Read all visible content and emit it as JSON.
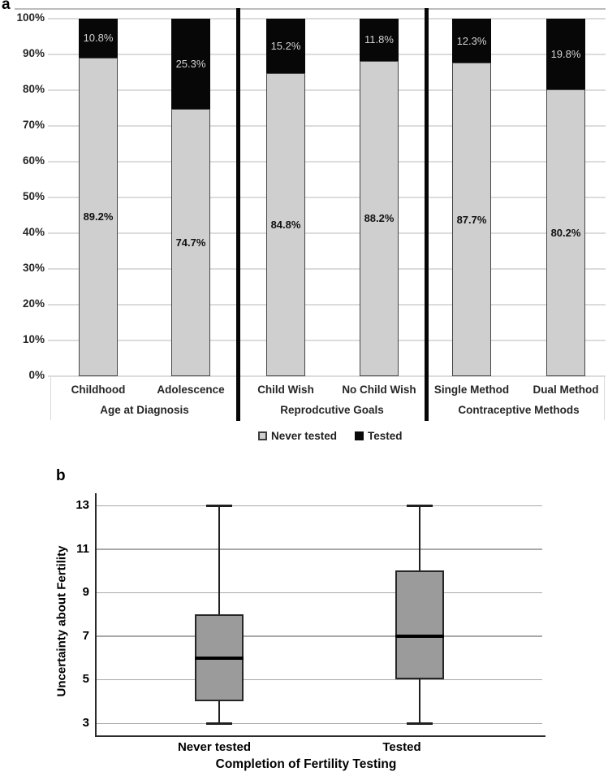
{
  "chart_data": [
    {
      "panel_label": "a",
      "type": "bar",
      "subtype": "stacked_percent_columns",
      "title": "",
      "xlabel": "",
      "ylabel": "",
      "ylim": [
        0,
        100
      ],
      "y_tick_labels": [
        "100%",
        "90%",
        "80%",
        "70%",
        "60%",
        "50%",
        "40%",
        "30%",
        "20%",
        "10%",
        "0%"
      ],
      "grid": true,
      "legend_position": "bottom",
      "categories": [
        "Childhood",
        "Adolescence",
        "Child Wish",
        "No Child Wish",
        "Single Method",
        "Dual Method"
      ],
      "group_labels": [
        "Age at Diagnosis",
        "Reprodcutive Goals",
        "Contraceptive Methods"
      ],
      "groups": [
        {
          "label": "Age at Diagnosis",
          "categories": [
            "Childhood",
            "Adolescence"
          ]
        },
        {
          "label": "Reprodcutive Goals",
          "categories": [
            "Child Wish",
            "No Child Wish"
          ]
        },
        {
          "label": "Contraceptive Methods",
          "categories": [
            "Single Method",
            "Dual Method"
          ]
        }
      ],
      "series": [
        {
          "name": "Never tested",
          "color": "#cfcfcf",
          "values": [
            89.2,
            74.7,
            84.8,
            88.2,
            87.7,
            80.2
          ],
          "data_labels": [
            "89.2%",
            "74.7%",
            "84.8%",
            "88.2%",
            "87.7%",
            "80.2%"
          ]
        },
        {
          "name": "Tested",
          "color": "#0a0a0a",
          "values": [
            10.8,
            25.3,
            15.2,
            11.8,
            12.3,
            19.8
          ],
          "data_labels": [
            "10.8%",
            "25.3%",
            "15.2%",
            "11.8%",
            "12.3%",
            "19.8%"
          ]
        }
      ]
    },
    {
      "panel_label": "b",
      "type": "boxplot",
      "title": "",
      "xlabel": "Completion of Fertility Testing",
      "ylabel": "Uncertainty about Fertility",
      "ylim": [
        3,
        13
      ],
      "y_ticks": [
        13,
        11,
        9,
        7,
        5,
        3
      ],
      "grid": true,
      "box_fill": "#9b9b9b",
      "categories": [
        "Never tested",
        "Tested"
      ],
      "boxes": [
        {
          "category": "Never tested",
          "whisker_min": 3,
          "q1": 4,
          "median": 6,
          "q3": 8,
          "whisker_max": 13
        },
        {
          "category": "Tested",
          "whisker_min": 3,
          "q1": 5,
          "median": 7,
          "q3": 10,
          "whisker_max": 13
        }
      ]
    }
  ]
}
